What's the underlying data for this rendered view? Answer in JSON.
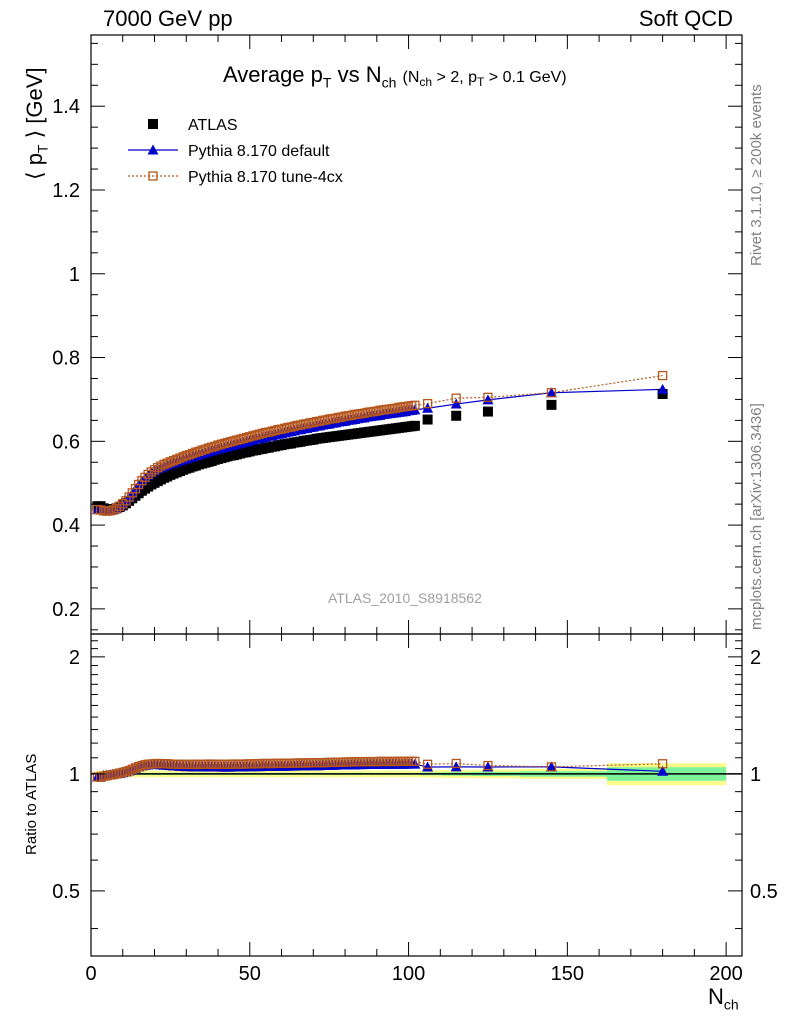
{
  "header": {
    "left": "7000 GeV pp",
    "right": "Soft QCD"
  },
  "side_labels": {
    "rivet": "Rivet 3.1.10, ≥ 200k events",
    "mcplots": "mcplots.cern.ch [arXiv:1306.3436]"
  },
  "chart_data": {
    "type": "scatter",
    "title": "Average p_T vs N_ch (N_ch > 2, p_T > 0.1 GeV)",
    "analysis_id": "ATLAS_2010_S8918562",
    "xlabel": "N_ch",
    "ylabel": "⟨ p_T ⟩ [GeV]",
    "xlim": [
      0,
      205
    ],
    "ylim": [
      0.14,
      1.57
    ],
    "xticks": [
      0,
      50,
      100,
      150,
      200
    ],
    "yticks": [
      0.2,
      0.4,
      0.6,
      0.8,
      1,
      1.2,
      1.4
    ],
    "legend": {
      "position": "top-left",
      "entries": [
        "ATLAS",
        "Pythia 8.170 default",
        "Pythia 8.170 tune-4cx"
      ]
    },
    "colors": {
      "ATLAS": "#000000",
      "default": "#0000cc",
      "tune4cx": "#b5561c",
      "band_inner": "#7cf29a",
      "band_outer": "#fbfb8c"
    },
    "x": [
      2,
      3,
      4,
      5,
      6,
      7,
      8,
      9,
      10,
      11,
      12,
      13,
      14,
      15,
      16,
      17,
      18,
      19,
      20,
      21,
      22,
      23,
      24,
      25,
      26,
      27,
      28,
      29,
      30,
      31,
      32,
      33,
      34,
      35,
      36,
      37,
      38,
      39,
      40,
      41,
      42,
      43,
      44,
      45,
      46,
      47,
      48,
      49,
      50,
      51,
      52,
      53,
      54,
      55,
      56,
      57,
      58,
      59,
      60,
      61,
      62,
      63,
      64,
      65,
      66,
      67,
      68,
      69,
      70,
      71,
      72,
      73,
      74,
      75,
      76,
      77,
      78,
      79,
      80,
      81,
      82,
      83,
      84,
      85,
      86,
      87,
      88,
      89,
      90,
      91,
      92,
      93,
      94,
      95,
      96,
      97,
      98,
      99,
      100,
      101,
      102,
      106,
      115,
      125,
      145,
      180
    ],
    "series": [
      {
        "name": "ATLAS",
        "values": [
          0.445,
          0.445,
          0.44,
          0.438,
          0.437,
          0.438,
          0.44,
          0.443,
          0.447,
          0.452,
          0.458,
          0.464,
          0.47,
          0.476,
          0.482,
          0.487,
          0.492,
          0.497,
          0.501,
          0.505,
          0.509,
          0.513,
          0.516,
          0.52,
          0.523,
          0.526,
          0.529,
          0.532,
          0.535,
          0.537,
          0.54,
          0.542,
          0.545,
          0.547,
          0.549,
          0.551,
          0.553,
          0.556,
          0.558,
          0.56,
          0.562,
          0.564,
          0.566,
          0.567,
          0.569,
          0.571,
          0.573,
          0.574,
          0.576,
          0.578,
          0.579,
          0.581,
          0.582,
          0.584,
          0.585,
          0.587,
          0.588,
          0.59,
          0.591,
          0.593,
          0.594,
          0.595,
          0.597,
          0.598,
          0.599,
          0.601,
          0.602,
          0.603,
          0.604,
          0.606,
          0.607,
          0.608,
          0.609,
          0.61,
          0.611,
          0.612,
          0.613,
          0.614,
          0.615,
          0.616,
          0.617,
          0.618,
          0.619,
          0.62,
          0.621,
          0.622,
          0.623,
          0.624,
          0.625,
          0.626,
          0.627,
          0.628,
          0.629,
          0.63,
          0.631,
          0.632,
          0.633,
          0.634,
          0.635,
          0.636,
          0.637,
          0.652,
          0.661,
          0.671,
          0.687,
          0.713
        ]
      },
      {
        "name": "Pythia 8.170 default",
        "values": [
          0.437,
          0.437,
          0.436,
          0.435,
          0.435,
          0.437,
          0.44,
          0.444,
          0.45,
          0.457,
          0.466,
          0.476,
          0.486,
          0.496,
          0.505,
          0.512,
          0.519,
          0.525,
          0.53,
          0.534,
          0.537,
          0.54,
          0.543,
          0.546,
          0.548,
          0.551,
          0.553,
          0.556,
          0.558,
          0.561,
          0.563,
          0.565,
          0.568,
          0.57,
          0.572,
          0.575,
          0.577,
          0.579,
          0.581,
          0.583,
          0.585,
          0.587,
          0.589,
          0.591,
          0.593,
          0.595,
          0.597,
          0.599,
          0.601,
          0.603,
          0.605,
          0.606,
          0.608,
          0.61,
          0.612,
          0.613,
          0.615,
          0.617,
          0.618,
          0.62,
          0.622,
          0.623,
          0.625,
          0.627,
          0.628,
          0.63,
          0.631,
          0.633,
          0.634,
          0.636,
          0.637,
          0.639,
          0.64,
          0.641,
          0.643,
          0.644,
          0.646,
          0.647,
          0.648,
          0.65,
          0.651,
          0.652,
          0.654,
          0.655,
          0.656,
          0.658,
          0.659,
          0.66,
          0.661,
          0.662,
          0.664,
          0.665,
          0.666,
          0.667,
          0.668,
          0.669,
          0.67,
          0.671,
          0.673,
          0.674,
          0.675,
          0.679,
          0.689,
          0.699,
          0.716,
          0.724
        ]
      },
      {
        "name": "Pythia 8.170 tune-4cx",
        "values": [
          0.437,
          0.436,
          0.434,
          0.433,
          0.434,
          0.436,
          0.44,
          0.445,
          0.451,
          0.458,
          0.467,
          0.477,
          0.487,
          0.497,
          0.506,
          0.514,
          0.521,
          0.527,
          0.532,
          0.537,
          0.541,
          0.545,
          0.548,
          0.551,
          0.554,
          0.557,
          0.56,
          0.563,
          0.566,
          0.568,
          0.571,
          0.574,
          0.576,
          0.579,
          0.581,
          0.584,
          0.586,
          0.588,
          0.591,
          0.593,
          0.595,
          0.597,
          0.599,
          0.601,
          0.603,
          0.605,
          0.607,
          0.609,
          0.611,
          0.613,
          0.615,
          0.617,
          0.619,
          0.621,
          0.622,
          0.624,
          0.626,
          0.628,
          0.629,
          0.631,
          0.633,
          0.634,
          0.636,
          0.638,
          0.639,
          0.641,
          0.642,
          0.644,
          0.645,
          0.647,
          0.648,
          0.65,
          0.651,
          0.653,
          0.654,
          0.655,
          0.657,
          0.658,
          0.66,
          0.661,
          0.662,
          0.664,
          0.665,
          0.666,
          0.667,
          0.669,
          0.67,
          0.671,
          0.672,
          0.674,
          0.675,
          0.676,
          0.677,
          0.678,
          0.679,
          0.681,
          0.682,
          0.683,
          0.684,
          0.685,
          0.686,
          0.69,
          0.703,
          0.705,
          0.716,
          0.757
        ]
      }
    ],
    "ratio": {
      "ylabel": "Ratio to ATLAS",
      "ylim": [
        0.34,
        2.29
      ],
      "yticks": [
        0.5,
        1,
        2
      ],
      "band_inner_halfwidth": [
        0.006,
        0.006,
        0.006,
        0.006,
        0.006,
        0.006,
        0.006,
        0.006,
        0.006,
        0.006,
        0.006,
        0.006,
        0.006,
        0.006,
        0.006,
        0.006,
        0.006,
        0.006,
        0.006,
        0.006,
        0.006,
        0.006,
        0.006,
        0.006,
        0.006,
        0.006,
        0.006,
        0.006,
        0.006,
        0.006,
        0.006,
        0.006,
        0.006,
        0.006,
        0.006,
        0.006,
        0.006,
        0.006,
        0.006,
        0.006,
        0.006,
        0.006,
        0.006,
        0.006,
        0.006,
        0.006,
        0.006,
        0.006,
        0.006,
        0.006,
        0.006,
        0.006,
        0.006,
        0.006,
        0.006,
        0.006,
        0.006,
        0.006,
        0.006,
        0.006,
        0.006,
        0.006,
        0.006,
        0.006,
        0.006,
        0.006,
        0.006,
        0.006,
        0.006,
        0.006,
        0.006,
        0.006,
        0.006,
        0.006,
        0.006,
        0.006,
        0.006,
        0.006,
        0.006,
        0.006,
        0.006,
        0.006,
        0.006,
        0.006,
        0.006,
        0.006,
        0.006,
        0.006,
        0.006,
        0.006,
        0.006,
        0.006,
        0.006,
        0.006,
        0.006,
        0.006,
        0.006,
        0.006,
        0.006,
        0.006,
        0.006,
        0.008,
        0.01,
        0.012,
        0.016,
        0.04
      ],
      "band_outer_halfwidth": [
        0.02,
        0.02,
        0.02,
        0.02,
        0.02,
        0.02,
        0.02,
        0.02,
        0.02,
        0.02,
        0.02,
        0.02,
        0.02,
        0.02,
        0.02,
        0.02,
        0.02,
        0.02,
        0.02,
        0.02,
        0.02,
        0.02,
        0.02,
        0.02,
        0.02,
        0.02,
        0.02,
        0.02,
        0.02,
        0.02,
        0.02,
        0.02,
        0.02,
        0.02,
        0.02,
        0.02,
        0.02,
        0.02,
        0.02,
        0.02,
        0.02,
        0.02,
        0.02,
        0.02,
        0.02,
        0.02,
        0.02,
        0.02,
        0.02,
        0.02,
        0.02,
        0.02,
        0.02,
        0.02,
        0.02,
        0.02,
        0.02,
        0.02,
        0.02,
        0.02,
        0.02,
        0.02,
        0.02,
        0.02,
        0.02,
        0.02,
        0.02,
        0.02,
        0.02,
        0.02,
        0.02,
        0.02,
        0.02,
        0.02,
        0.02,
        0.02,
        0.02,
        0.02,
        0.02,
        0.02,
        0.02,
        0.02,
        0.02,
        0.02,
        0.02,
        0.02,
        0.02,
        0.02,
        0.02,
        0.02,
        0.02,
        0.02,
        0.02,
        0.02,
        0.02,
        0.02,
        0.02,
        0.02,
        0.02,
        0.02,
        0.02,
        0.022,
        0.024,
        0.026,
        0.03,
        0.065
      ]
    }
  }
}
